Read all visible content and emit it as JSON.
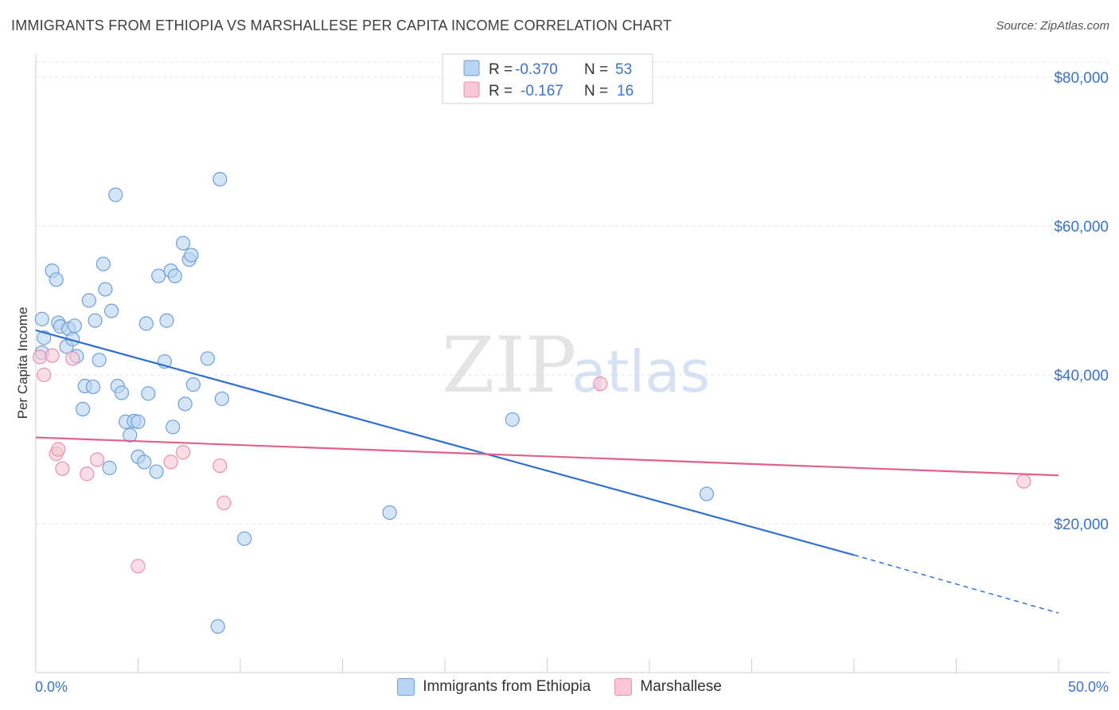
{
  "header": {
    "title": "IMMIGRANTS FROM ETHIOPIA VS MARSHALLESE PER CAPITA INCOME CORRELATION CHART",
    "source": "Source: ZipAtlas.com"
  },
  "watermark": {
    "zip": "ZIP",
    "atlas": "atlas"
  },
  "legend_top": {
    "rows": [
      {
        "r_label": "R =",
        "r_value": "-0.370",
        "n_label": "N =",
        "n_value": "53"
      },
      {
        "r_label": "R =",
        "r_value": "-0.167",
        "n_label": "N =",
        "n_value": "16"
      }
    ]
  },
  "legend_bottom": {
    "items": [
      {
        "label": "Immigrants from Ethiopia"
      },
      {
        "label": "Marshallese"
      }
    ]
  },
  "colors": {
    "ethiopia_fill": "#b9d3f3",
    "ethiopia_stroke": "#6f9fdc",
    "ethiopia_line": "#2f70d0",
    "marshallese_fill": "#f9c6d6",
    "marshallese_stroke": "#ea90ac",
    "marshallese_line": "#e0608e",
    "tick_label": "#3b73c9",
    "grid": "#e3e3e3"
  },
  "chart_data": {
    "type": "scatter",
    "title": "IMMIGRANTS FROM ETHIOPIA VS MARSHALLESE PER CAPITA INCOME CORRELATION CHART",
    "xlabel": "",
    "ylabel": "Per Capita Income",
    "xlim": [
      0,
      50
    ],
    "ylim": [
      0,
      80000
    ],
    "x_tick_labels": [
      "0.0%",
      "50.0%"
    ],
    "y_ticks": [
      20000,
      40000,
      60000,
      80000
    ],
    "y_tick_labels": [
      "$20,000",
      "$40,000",
      "$60,000",
      "$80,000"
    ],
    "grid": true,
    "legend_placement": "top-center",
    "series": [
      {
        "name": "Immigrants from Ethiopia",
        "R": -0.37,
        "N": 53,
        "points": [
          [
            0.3,
            47500
          ],
          [
            0.4,
            45000
          ],
          [
            0.3,
            43000
          ],
          [
            0.8,
            54000
          ],
          [
            1.0,
            52800
          ],
          [
            1.1,
            47000
          ],
          [
            1.2,
            46500
          ],
          [
            1.5,
            43800
          ],
          [
            1.6,
            46200
          ],
          [
            1.8,
            44800
          ],
          [
            1.9,
            46600
          ],
          [
            2.0,
            42500
          ],
          [
            2.3,
            35400
          ],
          [
            2.4,
            38500
          ],
          [
            2.6,
            50000
          ],
          [
            2.8,
            38400
          ],
          [
            2.9,
            47300
          ],
          [
            3.1,
            42000
          ],
          [
            3.3,
            54900
          ],
          [
            3.4,
            51500
          ],
          [
            3.6,
            27500
          ],
          [
            3.7,
            48600
          ],
          [
            3.9,
            64200
          ],
          [
            4.0,
            38500
          ],
          [
            4.2,
            37600
          ],
          [
            4.4,
            33700
          ],
          [
            4.6,
            31900
          ],
          [
            4.8,
            33800
          ],
          [
            5.0,
            29000
          ],
          [
            5.3,
            28300
          ],
          [
            5.4,
            46900
          ],
          [
            5.5,
            37500
          ],
          [
            5.9,
            27000
          ],
          [
            6.0,
            53300
          ],
          [
            6.3,
            41800
          ],
          [
            6.4,
            47300
          ],
          [
            6.6,
            54000
          ],
          [
            6.7,
            33000
          ],
          [
            6.8,
            53300
          ],
          [
            7.2,
            57700
          ],
          [
            7.3,
            36100
          ],
          [
            7.5,
            55500
          ],
          [
            7.7,
            38700
          ],
          [
            7.6,
            56100
          ],
          [
            8.4,
            42200
          ],
          [
            8.9,
            6200
          ],
          [
            9.0,
            66300
          ],
          [
            9.1,
            36800
          ],
          [
            10.2,
            18000
          ],
          [
            17.3,
            21500
          ],
          [
            23.3,
            34000
          ],
          [
            32.8,
            24000
          ],
          [
            5.0,
            33700
          ]
        ]
      },
      {
        "name": "Marshallese",
        "R": -0.167,
        "N": 16,
        "points": [
          [
            0.2,
            42400
          ],
          [
            0.4,
            40000
          ],
          [
            0.8,
            42600
          ],
          [
            1.0,
            29400
          ],
          [
            1.1,
            30000
          ],
          [
            1.3,
            27400
          ],
          [
            1.8,
            42200
          ],
          [
            2.5,
            26700
          ],
          [
            3.0,
            28600
          ],
          [
            5.0,
            14300
          ],
          [
            6.6,
            28300
          ],
          [
            7.2,
            29600
          ],
          [
            9.0,
            27800
          ],
          [
            9.2,
            22800
          ],
          [
            27.6,
            38800
          ],
          [
            48.3,
            25700
          ]
        ]
      }
    ],
    "trend_lines": [
      {
        "series": "Immigrants from Ethiopia",
        "x": [
          0,
          40
        ],
        "y": [
          46000,
          15800
        ],
        "dashed_extension": {
          "x": [
            40,
            50
          ],
          "y": [
            15800,
            8000
          ]
        }
      },
      {
        "series": "Marshallese",
        "x": [
          0,
          50
        ],
        "y": [
          31600,
          26500
        ]
      }
    ]
  }
}
